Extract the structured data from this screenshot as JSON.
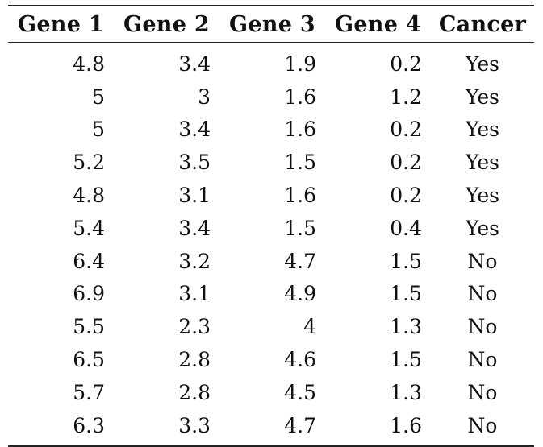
{
  "table": {
    "headers": [
      "Gene 1",
      "Gene 2",
      "Gene 3",
      "Gene 4",
      "Cancer"
    ],
    "rows": [
      [
        "4.8",
        "3.4",
        "1.9",
        "0.2",
        "Yes"
      ],
      [
        "5",
        "3",
        "1.6",
        "1.2",
        "Yes"
      ],
      [
        "5",
        "3.4",
        "1.6",
        "0.2",
        "Yes"
      ],
      [
        "5.2",
        "3.5",
        "1.5",
        "0.2",
        "Yes"
      ],
      [
        "4.8",
        "3.1",
        "1.6",
        "0.2",
        "Yes"
      ],
      [
        "5.4",
        "3.4",
        "1.5",
        "0.4",
        "Yes"
      ],
      [
        "6.4",
        "3.2",
        "4.7",
        "1.5",
        "No"
      ],
      [
        "6.9",
        "3.1",
        "4.9",
        "1.5",
        "No"
      ],
      [
        "5.5",
        "2.3",
        "4",
        "1.3",
        "No"
      ],
      [
        "6.5",
        "2.8",
        "4.6",
        "1.5",
        "No"
      ],
      [
        "5.7",
        "2.8",
        "4.5",
        "1.3",
        "No"
      ],
      [
        "6.3",
        "3.3",
        "4.7",
        "1.6",
        "No"
      ]
    ]
  }
}
